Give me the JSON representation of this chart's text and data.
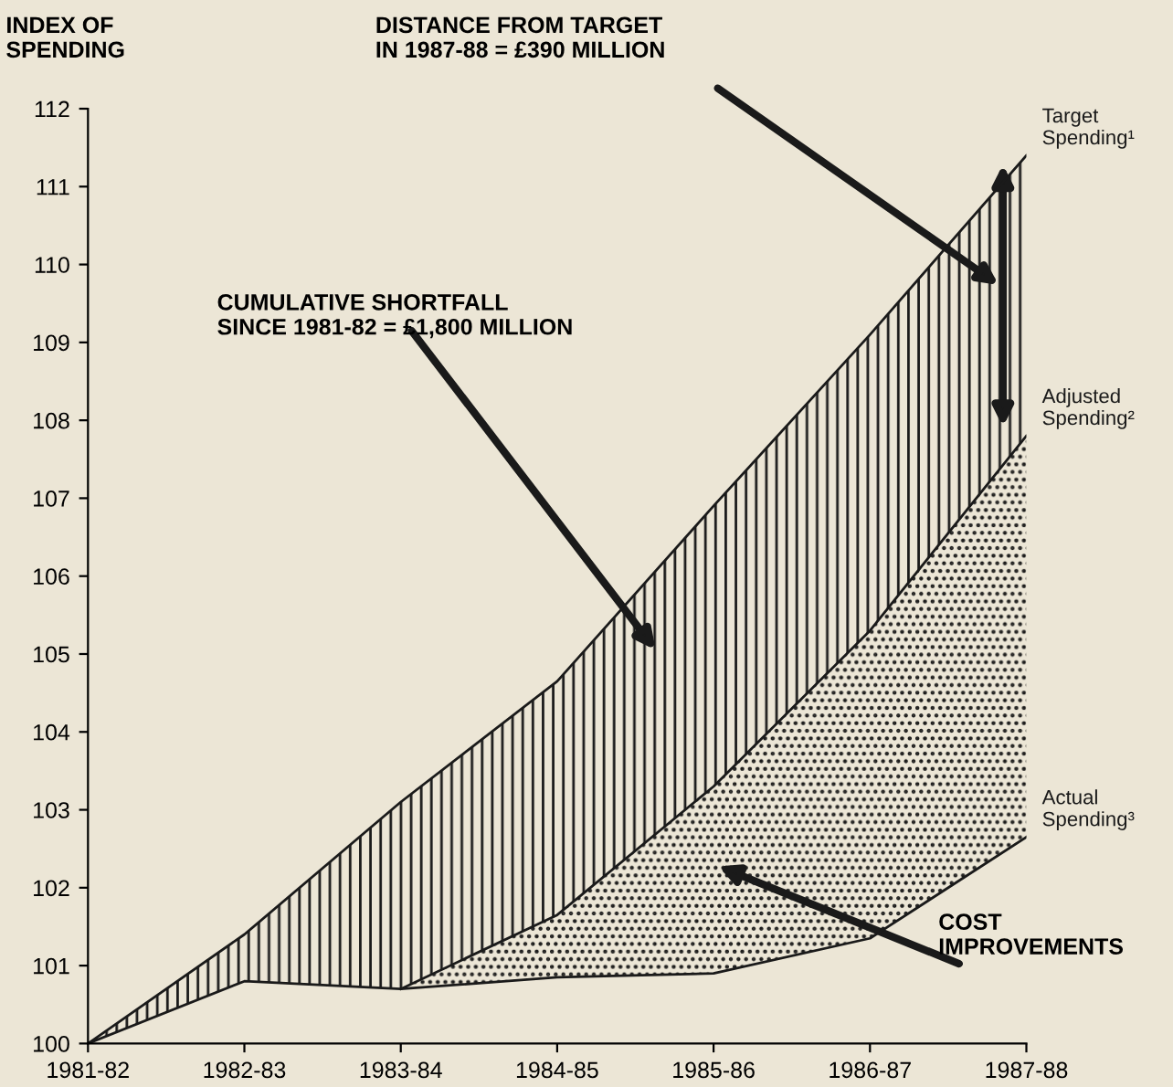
{
  "chart_data": {
    "type": "line",
    "ylabel": "INDEX OF\nSPENDING",
    "categories": [
      "1981-82",
      "1982-83",
      "1983-84",
      "1984-85",
      "1985-86",
      "1986-87",
      "1987-88"
    ],
    "ylim": [
      100,
      112
    ],
    "yticks": [
      100,
      101,
      102,
      103,
      104,
      105,
      106,
      107,
      108,
      109,
      110,
      111,
      112
    ],
    "series": [
      {
        "name": "Target Spending¹",
        "type": "area",
        "color": "#1a1a1a",
        "values": [
          100,
          101.4,
          103.1,
          104.65,
          106.9,
          109.1,
          111.4
        ]
      },
      {
        "name": "Adjusted Spending²",
        "type": "area",
        "color": "#1a1a1a",
        "values": [
          null,
          null,
          100.7,
          101.65,
          103.3,
          105.3,
          107.8
        ]
      },
      {
        "name": "Actual Spending³",
        "color": "#1a1a1a",
        "values": [
          100,
          100.8,
          100.7,
          100.85,
          100.9,
          101.35,
          102.65
        ]
      }
    ],
    "annotations": [
      "DISTANCE FROM TARGET\nIN 1987-88 = £390 MILLION",
      "CUMULATIVE SHORTFALL\nSINCE 1981-82 = £1,800 MILLION",
      "COST\nIMPROVEMENTS"
    ],
    "grid": false,
    "marker": "none",
    "line_style": "solid"
  }
}
